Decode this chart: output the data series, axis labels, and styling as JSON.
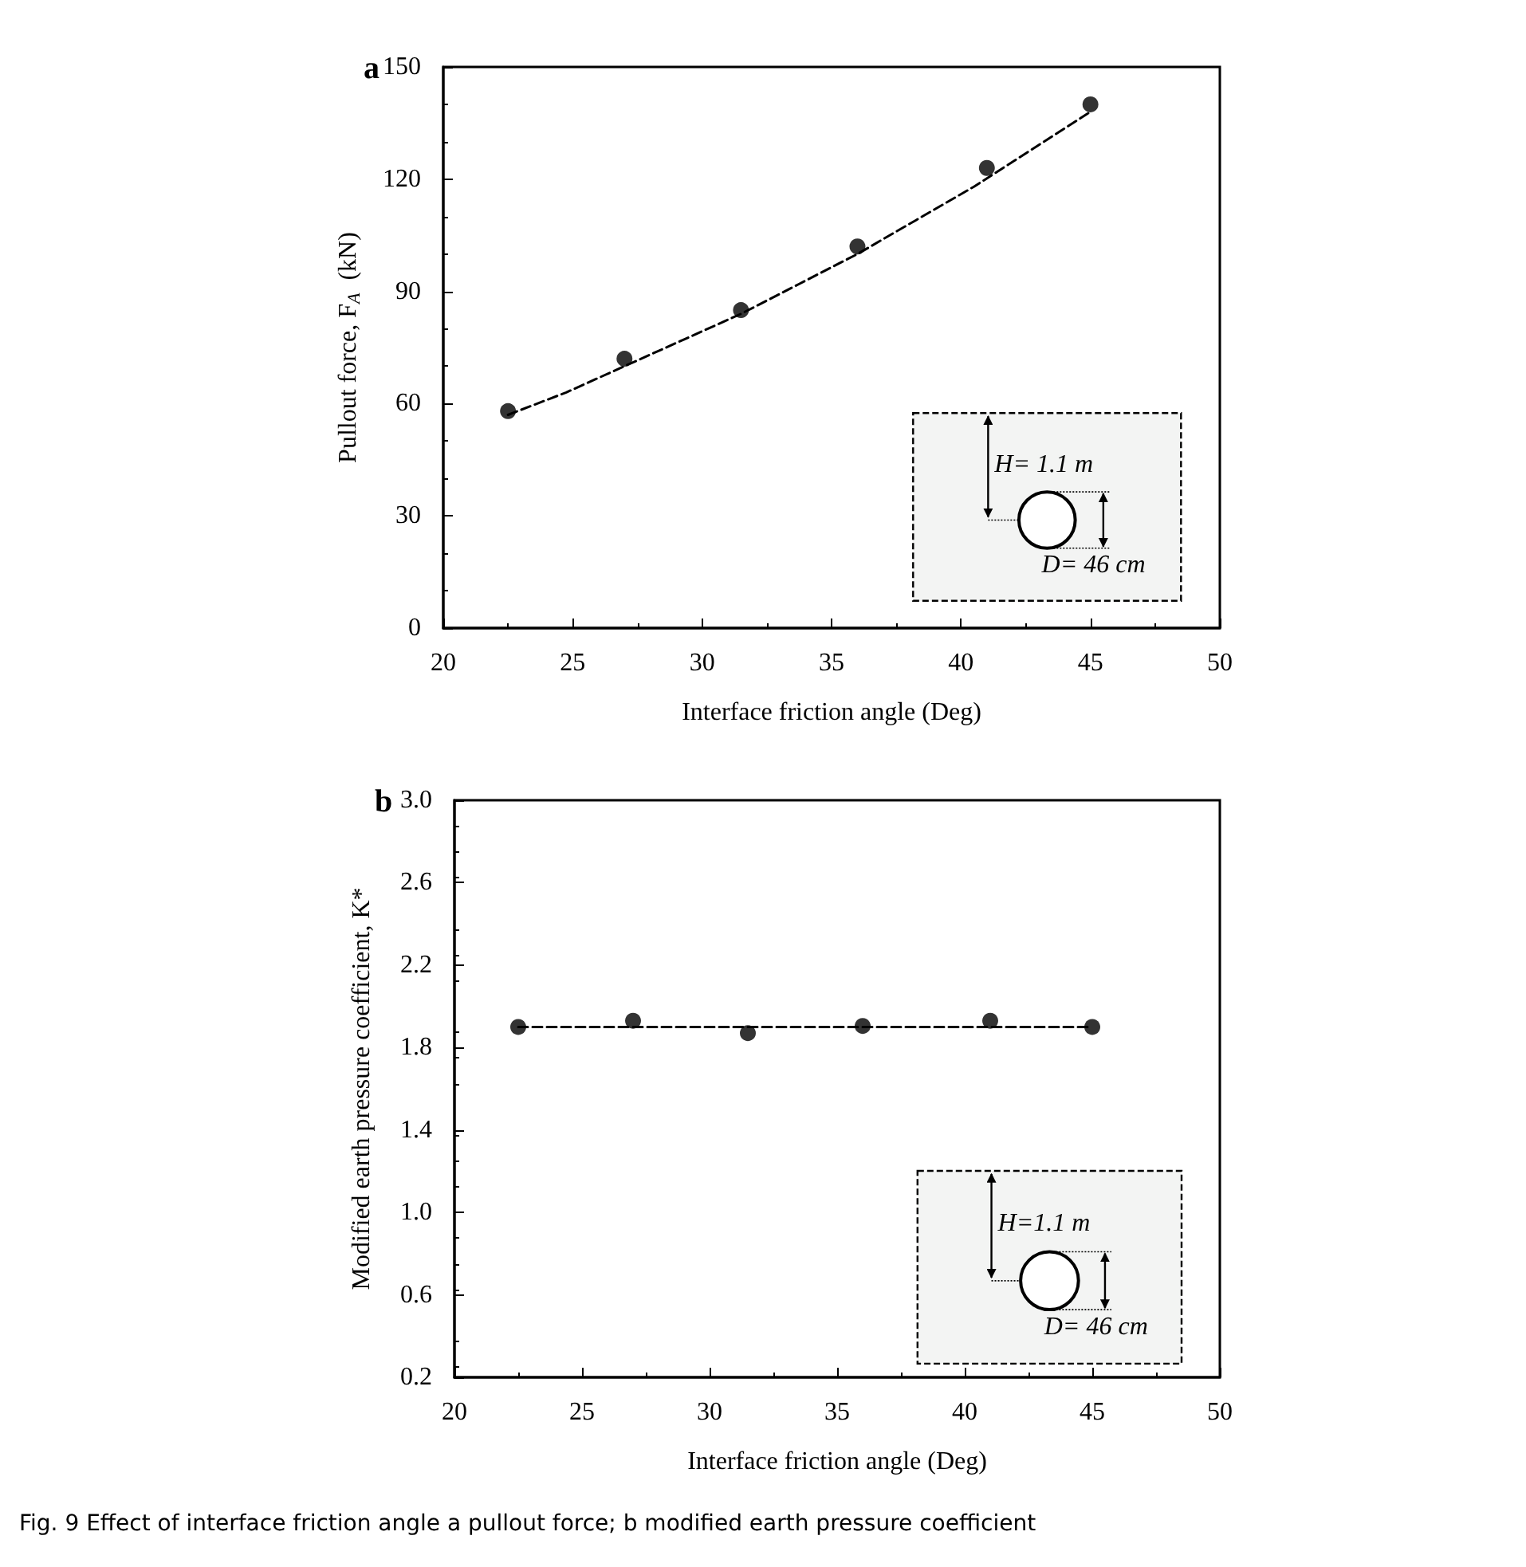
{
  "chart_data": [
    {
      "type": "scatter",
      "title": "a",
      "xlabel": "Interface friction angle (Deg)",
      "ylabel": "Pullout force, F$_{A}$  (kN)",
      "xlim": [
        20,
        50
      ],
      "xticks": [
        20,
        25,
        30,
        35,
        40,
        45,
        50
      ],
      "ylim": [
        0,
        150
      ],
      "yticks": [
        0,
        30,
        60,
        90,
        120,
        150
      ],
      "grid": false,
      "annotations": [
        "H= 1.1 m",
        "D= 46 cm"
      ],
      "series": [
        {
          "color": "#000000",
          "marker": "circle",
          "x": [
            22.5,
            27,
            31.5,
            36,
            41,
            45
          ],
          "values": [
            58,
            72,
            85,
            102,
            123,
            140
          ]
        },
        {
          "type": "line",
          "color": "#000000",
          "marker": "none",
          "line_style": "dashed",
          "x": [
            22.5,
            24.75,
            27,
            29.25,
            31.5,
            33.75,
            36,
            38.25,
            40.5,
            42.75,
            45
          ],
          "values": [
            57,
            63,
            70,
            77,
            84,
            92,
            100,
            109,
            118,
            128,
            138
          ]
        }
      ]
    },
    {
      "type": "scatter",
      "title": "b",
      "xlabel": "Interface friction angle (Deg)",
      "ylabel": "Modified earth pressure coefficient, K*",
      "xlim": [
        20,
        50
      ],
      "xticks": [
        20,
        25,
        30,
        35,
        40,
        45,
        50
      ],
      "ylim": [
        0.2,
        3.0
      ],
      "yticks": [
        {
          "value": 0.2,
          "label": "0.2"
        },
        {
          "value": 0.6,
          "label": "0.6"
        },
        {
          "value": 1.0,
          "label": "1.0"
        },
        {
          "value": 1.4,
          "label": "1.4"
        },
        {
          "value": 1.8,
          "label": "1.8"
        },
        {
          "value": 2.2,
          "label": "2.2"
        },
        {
          "value": 2.6,
          "label": "2.6"
        },
        {
          "value": 3.0,
          "label": "3.0"
        }
      ],
      "grid": false,
      "annotations": [
        "H=1.1 m",
        "D= 46 cm",
        "Fig. 9  Effect of interface friction angle a pullout force; b modified earth pressure coefficient"
      ],
      "series": [
        {
          "color": "#000000",
          "marker": "circle",
          "x": [
            22.5,
            27,
            31.5,
            36,
            41,
            45
          ],
          "values": [
            1.9,
            1.93,
            1.87,
            1.905,
            1.93,
            1.9
          ]
        },
        {
          "type": "line",
          "color": "#000000",
          "marker": "none",
          "line_style": "dashed",
          "x": [
            22.5,
            45
          ],
          "values": [
            1.9,
            1.9
          ]
        }
      ]
    }
  ]
}
